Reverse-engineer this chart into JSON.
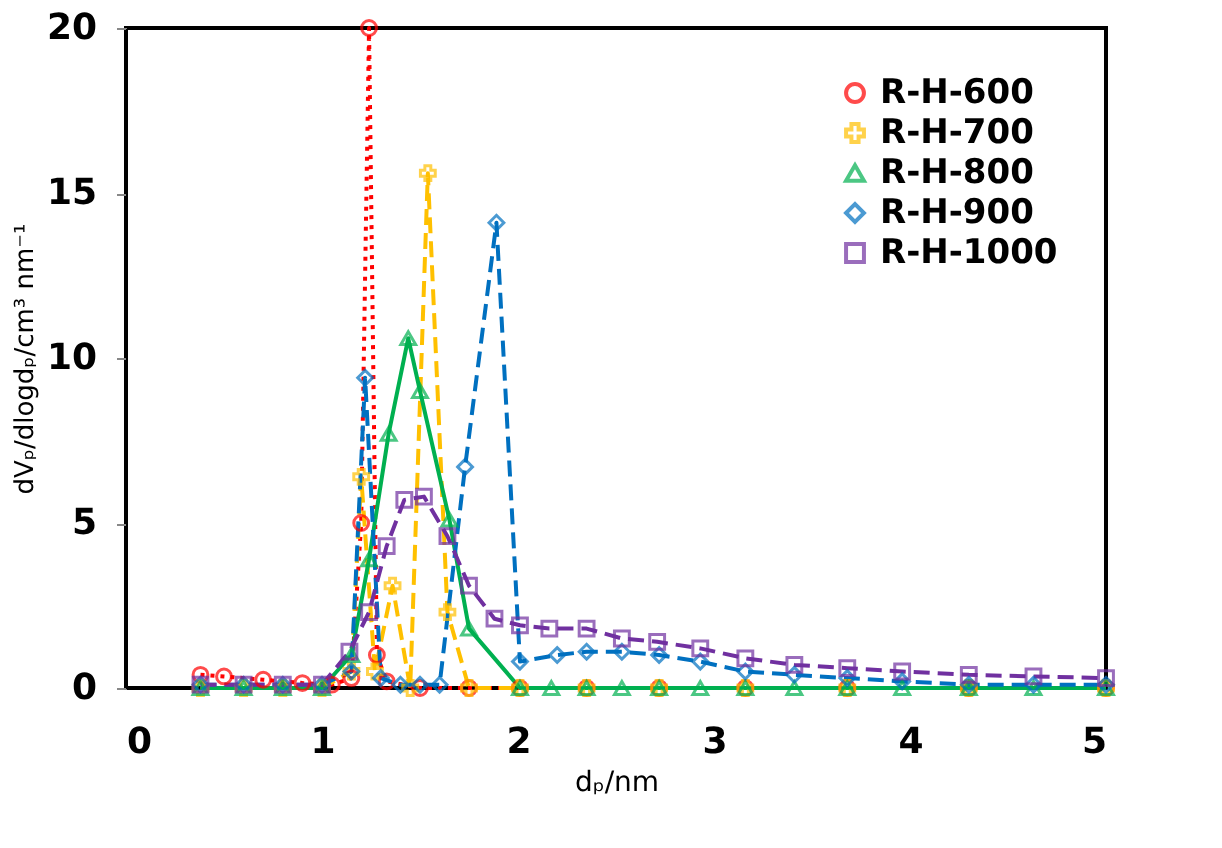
{
  "chart_data": {
    "type": "line",
    "xlabel": "dₚ/nm",
    "ylabel": "dVₚ/dlogdₚ/cm³ nm⁻¹",
    "xlim": [
      0,
      5
    ],
    "ylim": [
      0,
      20
    ],
    "xticks": [
      0,
      1,
      2,
      3,
      4,
      5
    ],
    "yticks": [
      0,
      5,
      10,
      15,
      20
    ],
    "grid": false,
    "legend": "top right",
    "series": [
      {
        "name": "R-H-600",
        "color": "#ff0000",
        "marker": "circle",
        "line_style": "dotted",
        "x": [
          0.38,
          0.5,
          0.7,
          0.9,
          1.05,
          1.15,
          1.2,
          1.24,
          1.28,
          1.33,
          1.5,
          1.75,
          2.01,
          2.35,
          2.72,
          3.16,
          3.68,
          4.3,
          5.0
        ],
        "values": [
          0.4,
          0.35,
          0.25,
          0.15,
          0.1,
          0.3,
          5,
          20,
          1,
          0.2,
          0,
          0,
          0,
          0,
          0,
          0,
          0,
          0,
          0
        ]
      },
      {
        "name": "R-H-700",
        "color": "#ffc000",
        "marker": "cross",
        "line_style": "dashed",
        "x": [
          0.38,
          0.6,
          0.8,
          1.0,
          1.15,
          1.2,
          1.27,
          1.36,
          1.45,
          1.54,
          1.64,
          1.75,
          2.01,
          2.35,
          2.72,
          3.16,
          3.68,
          4.3,
          5.0
        ],
        "values": [
          0,
          0,
          0,
          0,
          0.5,
          6.4,
          0.5,
          3.1,
          0,
          15.6,
          2.3,
          0,
          0,
          0,
          0,
          0,
          0,
          0,
          0
        ]
      },
      {
        "name": "R-H-800",
        "color": "#00b050",
        "marker": "triangle",
        "line_style": "solid",
        "x": [
          0.38,
          0.6,
          0.8,
          1.0,
          1.15,
          1.24,
          1.34,
          1.44,
          1.5,
          1.65,
          1.75,
          2.01,
          2.17,
          2.35,
          2.53,
          2.72,
          2.93,
          3.16,
          3.41,
          3.68,
          3.96,
          4.3,
          4.63,
          5.0
        ],
        "values": [
          0,
          0,
          0,
          0,
          1,
          3.9,
          7.7,
          10.6,
          9.0,
          5.1,
          1.8,
          0,
          0,
          0,
          0,
          0,
          0,
          0,
          0,
          0,
          0,
          0,
          0,
          0
        ]
      },
      {
        "name": "R-H-900",
        "color": "#0070c0",
        "marker": "diamond",
        "line_style": "dashed",
        "x": [
          0.38,
          0.6,
          0.8,
          1.0,
          1.15,
          1.22,
          1.3,
          1.4,
          1.5,
          1.6,
          1.73,
          1.89,
          2.01,
          2.2,
          2.35,
          2.53,
          2.72,
          2.93,
          3.16,
          3.41,
          3.68,
          3.96,
          4.3,
          4.63,
          5.0
        ],
        "values": [
          0.1,
          0.1,
          0.1,
          0.1,
          0.5,
          9.4,
          0.3,
          0.1,
          0.1,
          0.1,
          6.7,
          14.1,
          0.8,
          1.0,
          1.1,
          1.1,
          1.0,
          0.8,
          0.5,
          0.4,
          0.3,
          0.2,
          0.1,
          0.1,
          0.1
        ]
      },
      {
        "name": "R-H-1000",
        "color": "#7030a0",
        "marker": "square",
        "line_style": "dashed",
        "x": [
          0.38,
          0.6,
          0.8,
          1.0,
          1.14,
          1.24,
          1.33,
          1.42,
          1.52,
          1.64,
          1.75,
          1.88,
          2.01,
          2.16,
          2.35,
          2.53,
          2.71,
          2.93,
          3.16,
          3.41,
          3.68,
          3.96,
          4.3,
          4.63,
          5.0
        ],
        "values": [
          0.1,
          0.1,
          0.1,
          0.1,
          1.1,
          2.3,
          4.3,
          5.7,
          5.8,
          4.6,
          3.1,
          2.1,
          1.9,
          1.8,
          1.8,
          1.5,
          1.4,
          1.2,
          0.9,
          0.7,
          0.6,
          0.5,
          0.4,
          0.35,
          0.3
        ]
      }
    ]
  }
}
